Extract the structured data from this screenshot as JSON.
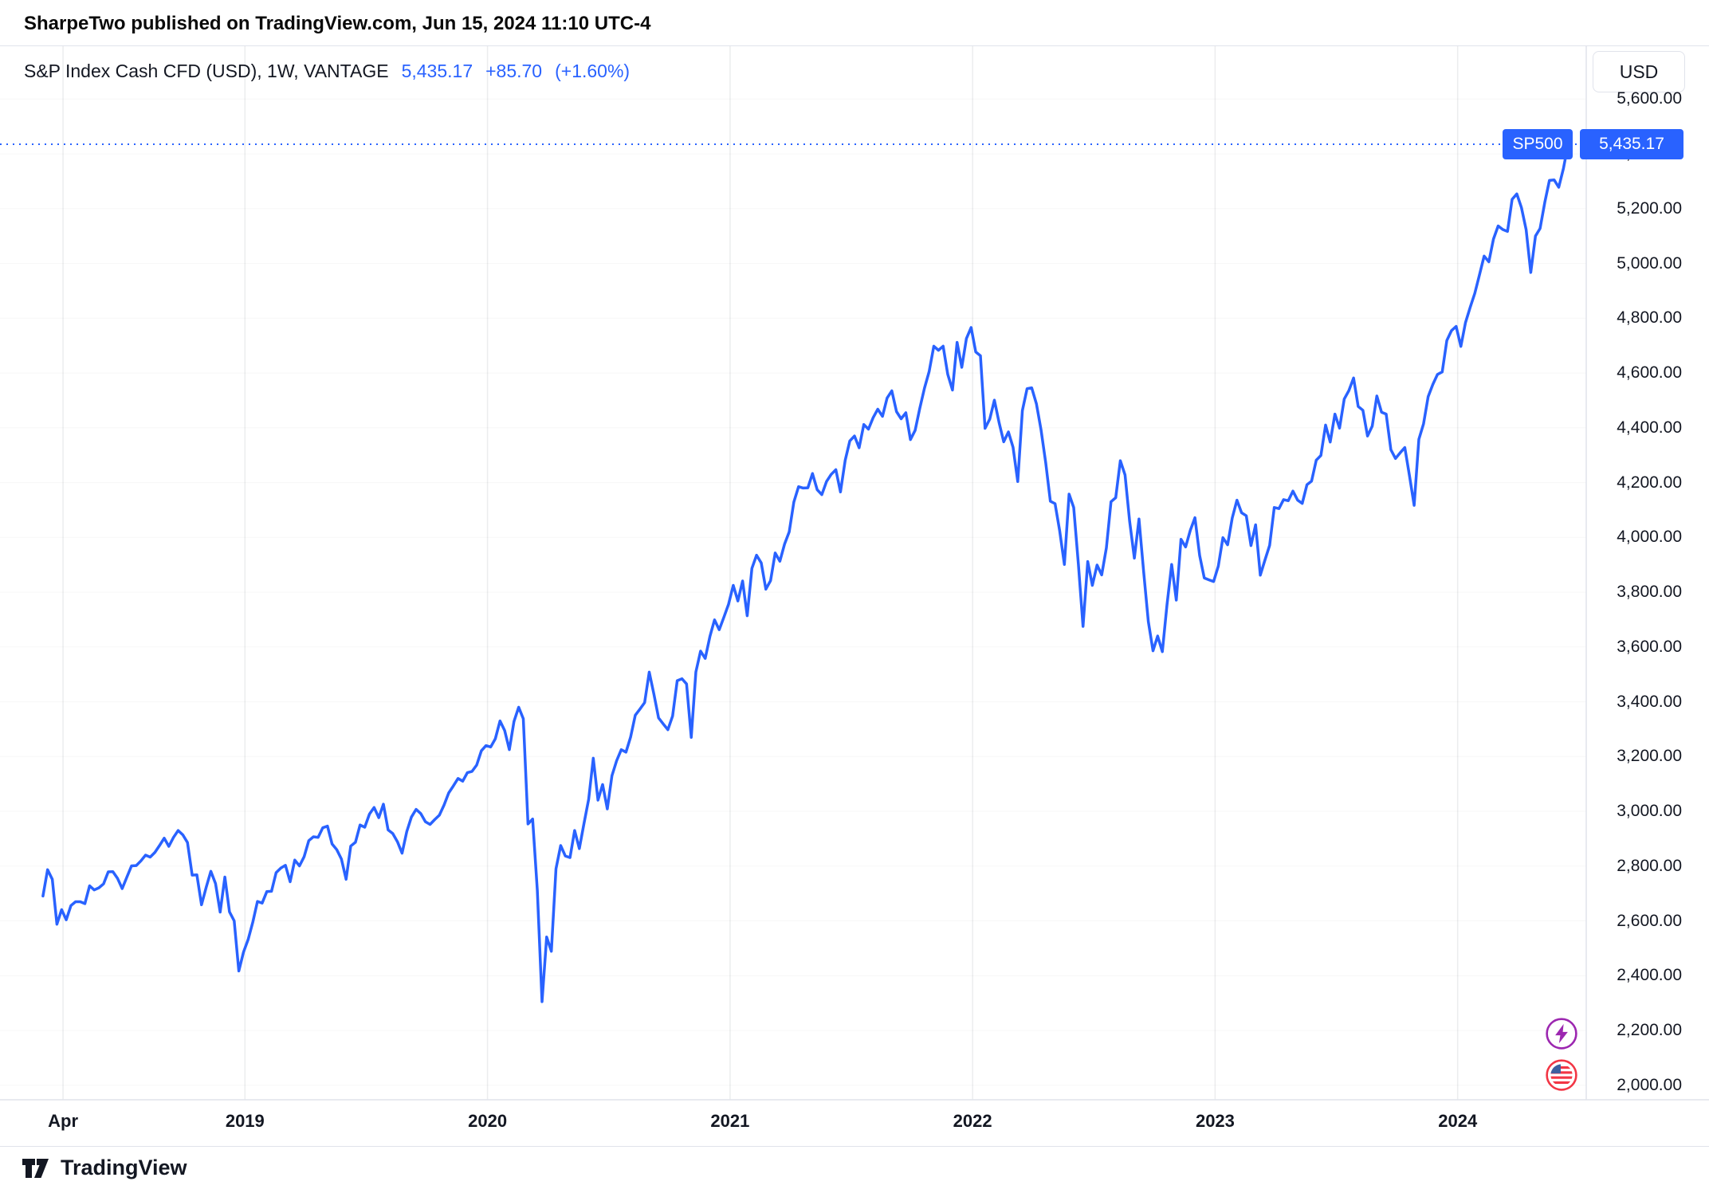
{
  "attribution": "SharpeTwo published on TradingView.com, Jun 15, 2024 11:10 UTC-4",
  "header": {
    "symbol_title": "S&P Index Cash CFD (USD), 1W, VANTAGE",
    "price": "5,435.17",
    "change": "+85.70",
    "change_pct": "(+1.60%)",
    "currency_button": "USD"
  },
  "badge": {
    "symbol": "SP500",
    "price": "5,435.17"
  },
  "footer": {
    "brand": "TradingView"
  },
  "colors": {
    "accent": "#2962FF",
    "text": "#131722",
    "border": "#E0E3EB",
    "badge_bg": "#2962FF",
    "marker_purple": "#9C27B0",
    "marker_red": "#F23645"
  },
  "chart_data": {
    "type": "line",
    "title": "S&P Index Cash CFD (USD), 1W, VANTAGE",
    "symbol": "SP500",
    "timeframe": "1W",
    "provider": "VANTAGE",
    "currency": "USD",
    "last": 5435.17,
    "change": 85.7,
    "change_pct": 1.6,
    "grid": true,
    "legend_position": "top-left",
    "x_axis": {
      "range": [
        2017.99,
        2024.53
      ],
      "ticks": [
        {
          "label": "Apr",
          "t": 2018.25
        },
        {
          "label": "2019",
          "t": 2019
        },
        {
          "label": "2020",
          "t": 2020
        },
        {
          "label": "2021",
          "t": 2021
        },
        {
          "label": "2022",
          "t": 2022
        },
        {
          "label": "2023",
          "t": 2023
        },
        {
          "label": "2024",
          "t": 2024
        }
      ]
    },
    "y_axis": {
      "range": [
        1947,
        5793
      ],
      "ticks": [
        {
          "value": 5600,
          "label": "5,600.00"
        },
        {
          "value": 5400,
          "label": "5,400.00"
        },
        {
          "value": 5200,
          "label": "5,200.00"
        },
        {
          "value": 5000,
          "label": "5,000.00"
        },
        {
          "value": 4800,
          "label": "4,800.00"
        },
        {
          "value": 4600,
          "label": "4,600.00"
        },
        {
          "value": 4400,
          "label": "4,400.00"
        },
        {
          "value": 4200,
          "label": "4,200.00"
        },
        {
          "value": 4000,
          "label": "4,000.00"
        },
        {
          "value": 3800,
          "label": "3,800.00"
        },
        {
          "value": 3600,
          "label": "3,600.00"
        },
        {
          "value": 3400,
          "label": "3,400.00"
        },
        {
          "value": 3200,
          "label": "3,200.00"
        },
        {
          "value": 3000,
          "label": "3,000.00"
        },
        {
          "value": 2800,
          "label": "2,800.00"
        },
        {
          "value": 2600,
          "label": "2,600.00"
        },
        {
          "value": 2400,
          "label": "2,400.00"
        },
        {
          "value": 2200,
          "label": "2,200.00"
        },
        {
          "value": 2000,
          "label": "2,000.00"
        }
      ]
    },
    "price_line": {
      "value": 5435.17,
      "style": "dotted",
      "color": "#2962FF"
    },
    "series": [
      {
        "name": "SP500",
        "color": "#2962FF",
        "x_start": 2018.167,
        "x_step": 0.01923,
        "prices": [
          2691,
          2787,
          2752,
          2588,
          2641,
          2604,
          2656,
          2670,
          2670,
          2663,
          2728,
          2713,
          2721,
          2735,
          2779,
          2780,
          2755,
          2718,
          2760,
          2801,
          2802,
          2819,
          2840,
          2833,
          2850,
          2875,
          2902,
          2872,
          2905,
          2930,
          2914,
          2886,
          2767,
          2768,
          2659,
          2723,
          2781,
          2736,
          2632,
          2760,
          2633,
          2600,
          2417,
          2486,
          2532,
          2596,
          2671,
          2665,
          2707,
          2708,
          2776,
          2793,
          2803,
          2743,
          2822,
          2801,
          2834,
          2893,
          2907,
          2905,
          2940,
          2946,
          2881,
          2860,
          2826,
          2752,
          2873,
          2887,
          2950,
          2942,
          2990,
          3014,
          2977,
          3026,
          2932,
          2919,
          2889,
          2847,
          2926,
          2979,
          3007,
          2992,
          2962,
          2952,
          2970,
          2986,
          3023,
          3067,
          3093,
          3120,
          3110,
          3141,
          3146,
          3169,
          3221,
          3240,
          3235,
          3265,
          3330,
          3295,
          3225,
          3328,
          3380,
          3338,
          2954,
          2972,
          2711,
          2305,
          2541,
          2489,
          2790,
          2875,
          2837,
          2831,
          2930,
          2864,
          2955,
          3044,
          3194,
          3041,
          3098,
          3009,
          3130,
          3185,
          3225,
          3216,
          3271,
          3351,
          3373,
          3397,
          3508,
          3427,
          3341,
          3319,
          3298,
          3348,
          3477,
          3484,
          3465,
          3270,
          3509,
          3585,
          3558,
          3638,
          3699,
          3663,
          3709,
          3756,
          3825,
          3768,
          3841,
          3714,
          3887,
          3935,
          3907,
          3811,
          3842,
          3943,
          3913,
          3975,
          4020,
          4129,
          4185,
          4180,
          4181,
          4233,
          4174,
          4156,
          4204,
          4230,
          4247,
          4166,
          4281,
          4352,
          4370,
          4327,
          4412,
          4395,
          4437,
          4468,
          4442,
          4509,
          4535,
          4459,
          4433,
          4455,
          4357,
          4391,
          4471,
          4545,
          4605,
          4698,
          4683,
          4698,
          4595,
          4538,
          4712,
          4621,
          4726,
          4766,
          4677,
          4663,
          4398,
          4432,
          4501,
          4419,
          4349,
          4385,
          4329,
          4204,
          4463,
          4543,
          4546,
          4488,
          4393,
          4272,
          4132,
          4123,
          4024,
          3901,
          4158,
          4109,
          3901,
          3675,
          3912,
          3825,
          3899,
          3863,
          3962,
          4130,
          4145,
          4280,
          4228,
          4058,
          3924,
          4067,
          3873,
          3693,
          3586,
          3640,
          3583,
          3753,
          3901,
          3771,
          3993,
          3965,
          4026,
          4072,
          3934,
          3852,
          3845,
          3839,
          3895,
          3999,
          3973,
          4071,
          4136,
          4090,
          4079,
          3970,
          4046,
          3862,
          3917,
          3971,
          4109,
          4105,
          4138,
          4134,
          4169,
          4136,
          4124,
          4192,
          4205,
          4282,
          4299,
          4410,
          4348,
          4450,
          4399,
          4505,
          4536,
          4582,
          4478,
          4464,
          4370,
          4406,
          4516,
          4457,
          4450,
          4320,
          4288,
          4309,
          4328,
          4224,
          4117,
          4358,
          4415,
          4514,
          4559,
          4595,
          4604,
          4719,
          4755,
          4770,
          4697,
          4784,
          4840,
          4891,
          4959,
          5027,
          5006,
          5089,
          5137,
          5124,
          5117,
          5234,
          5254,
          5204,
          5123,
          4967,
          5100,
          5128,
          5223,
          5303,
          5305,
          5278,
          5347,
          5435.17
        ]
      }
    ]
  }
}
